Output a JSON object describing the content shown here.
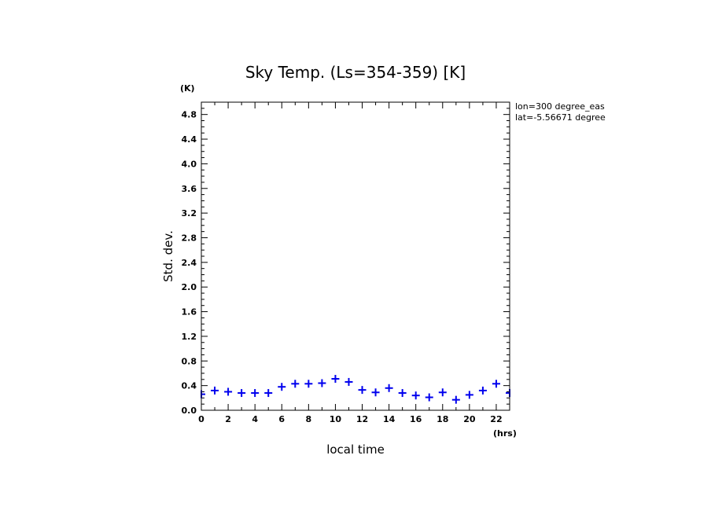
{
  "chart_data": {
    "type": "scatter",
    "title": "Sky Temp. (Ls=354-359) [K]",
    "xlabel": "local time",
    "ylabel": "Std. dev.",
    "x_unit": "(hrs)",
    "y_unit": "(K)",
    "xlim": [
      0,
      23
    ],
    "ylim": [
      0,
      5.0
    ],
    "x_ticks": [
      0,
      2,
      4,
      6,
      8,
      10,
      12,
      14,
      16,
      18,
      20,
      22
    ],
    "x_tick_labels": [
      "0",
      "2",
      "4",
      "6",
      "8",
      "10",
      "12",
      "14",
      "16",
      "18",
      "20",
      "22"
    ],
    "y_ticks": [
      0.0,
      0.4,
      0.8,
      1.2,
      1.6,
      2.0,
      2.4,
      2.8,
      3.2,
      3.6,
      4.0,
      4.4,
      4.8
    ],
    "y_tick_labels": [
      "0.0",
      "0.4",
      "0.8",
      "1.2",
      "1.6",
      "2.0",
      "2.4",
      "2.8",
      "3.2",
      "3.6",
      "4.0",
      "4.4",
      "4.8"
    ],
    "marker": "+",
    "marker_color": "#0000ee",
    "grid": false,
    "series": [
      {
        "x": [
          0,
          1,
          2,
          3,
          4,
          5,
          6,
          7,
          8,
          9,
          10,
          11,
          12,
          13,
          14,
          15,
          16,
          17,
          18,
          19,
          20,
          21,
          22,
          23
        ],
        "values": [
          0.26,
          0.32,
          0.3,
          0.28,
          0.28,
          0.28,
          0.38,
          0.43,
          0.43,
          0.44,
          0.51,
          0.46,
          0.33,
          0.29,
          0.36,
          0.28,
          0.24,
          0.21,
          0.29,
          0.17,
          0.25,
          0.32,
          0.43,
          0.28
        ]
      }
    ],
    "annotations": [
      "lon=300 degree_eas",
      "lat=-5.56671 degree"
    ]
  }
}
